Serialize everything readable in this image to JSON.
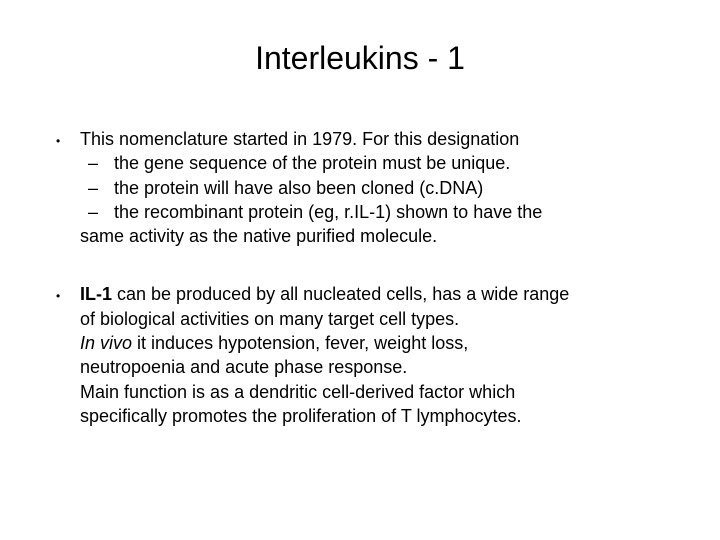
{
  "title": "Interleukins - 1",
  "block1": {
    "lead": "This nomenclature started in 1979.  For this designation",
    "sub1": "the gene sequence of the protein must be unique.",
    "sub2": " the protein will have also been cloned (c.DNA)",
    "sub3a": " the recombinant protein (eg, r.IL-1) shown to have the",
    "sub3b": "same activity as the native purified molecule."
  },
  "block2": {
    "bold": "IL-1",
    "p1a": " can be produced by all nucleated cells, has a wide range",
    "p1b": "of biological activities on many target cell types.",
    "ital": "In vivo",
    "p2a": " it induces hypotension, fever, weight loss,",
    "p2b": "neutropoenia and acute phase response.",
    "p3a": "Main function is as a dendritic cell-derived factor which",
    "p3b": "specifically promotes the proliferation of T lymphocytes."
  },
  "colors": {
    "background": "#ffffff",
    "text": "#000000"
  },
  "fontsizes": {
    "title": 32,
    "body": 18
  }
}
